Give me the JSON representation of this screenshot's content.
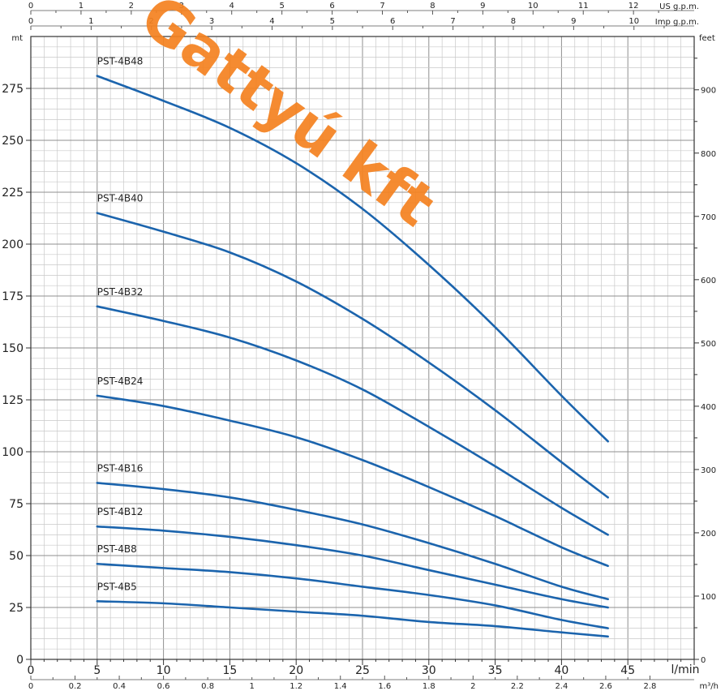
{
  "chart_data": {
    "type": "line",
    "title": "",
    "watermark": "Gattyú kft",
    "xlabel": "l/min",
    "ylabel": "mt",
    "ylabel_right": "feet",
    "xlim": [
      0,
      50
    ],
    "ylim": [
      0,
      300
    ],
    "grid": true,
    "line_color": "#1b64ad",
    "x_ticks": [
      0,
      5,
      10,
      15,
      20,
      25,
      30,
      35,
      40,
      45
    ],
    "y_ticks": [
      0,
      25,
      50,
      75,
      100,
      125,
      150,
      175,
      200,
      225,
      250,
      275
    ],
    "y_right_ticks": [
      0,
      100,
      200,
      300,
      400,
      500,
      600,
      700,
      800,
      900
    ],
    "x_axes_secondary": [
      {
        "unit": "US g.p.m.",
        "ticks": [
          0,
          1,
          2,
          3,
          4,
          5,
          6,
          7,
          8,
          9,
          10,
          11,
          12
        ]
      },
      {
        "unit": "Imp g.p.m.",
        "ticks": [
          0,
          1,
          2,
          3,
          4,
          5,
          6,
          7,
          8,
          9,
          10
        ]
      },
      {
        "unit": "m³/h",
        "ticks": [
          "0",
          "0.2",
          "0.4",
          "0.6",
          "0.8",
          "1",
          "1.2",
          "1.4",
          "1.6",
          "1.8",
          "2",
          "2.2",
          "2.4",
          "2.6",
          "2.8"
        ]
      }
    ],
    "series": [
      {
        "name": "PST-4B48",
        "x": [
          5,
          10,
          15,
          20,
          25,
          30,
          35,
          40,
          43.5
        ],
        "y": [
          281,
          269,
          256,
          239,
          217,
          190,
          160,
          127,
          105
        ]
      },
      {
        "name": "PST-4B40",
        "x": [
          5,
          10,
          15,
          20,
          25,
          30,
          35,
          40,
          43.5
        ],
        "y": [
          215,
          206,
          196,
          182,
          164,
          143,
          120,
          95,
          78
        ]
      },
      {
        "name": "PST-4B32",
        "x": [
          5,
          10,
          15,
          20,
          25,
          30,
          35,
          40,
          43.5
        ],
        "y": [
          170,
          163,
          155,
          144,
          130,
          112,
          93,
          73,
          60
        ]
      },
      {
        "name": "PST-4B24",
        "x": [
          5,
          10,
          15,
          20,
          25,
          30,
          35,
          40,
          43.5
        ],
        "y": [
          127,
          122,
          115,
          107,
          96,
          83,
          69,
          54,
          45
        ]
      },
      {
        "name": "PST-4B16",
        "x": [
          5,
          10,
          15,
          20,
          25,
          30,
          35,
          40,
          43.5
        ],
        "y": [
          85,
          82,
          78,
          72,
          65,
          56,
          46,
          35,
          29
        ]
      },
      {
        "name": "PST-4B12",
        "x": [
          5,
          10,
          15,
          20,
          25,
          30,
          35,
          40,
          43.5
        ],
        "y": [
          64,
          62,
          59,
          55,
          50,
          43,
          36,
          29,
          25
        ]
      },
      {
        "name": "PST-4B8",
        "x": [
          5,
          10,
          15,
          20,
          25,
          30,
          35,
          40,
          43.5
        ],
        "y": [
          46,
          44,
          42,
          39,
          35,
          31,
          26,
          19,
          15
        ]
      },
      {
        "name": "PST-4B5",
        "x": [
          5,
          10,
          15,
          20,
          25,
          30,
          35,
          40,
          43.5
        ],
        "y": [
          28,
          27,
          25,
          23,
          21,
          18,
          16,
          13,
          11
        ]
      }
    ]
  }
}
